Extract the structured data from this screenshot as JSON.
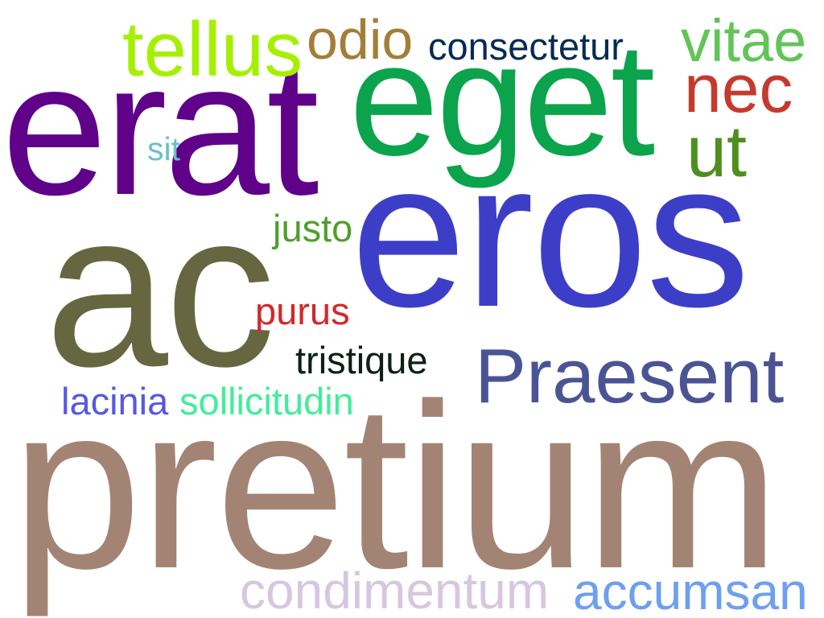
{
  "words": [
    {
      "text": "pretium",
      "color": "#a38474"
    },
    {
      "text": "eros",
      "color": "#3d3ec8"
    },
    {
      "text": "ac",
      "color": "#666741"
    },
    {
      "text": "erat",
      "color": "#5f0289"
    },
    {
      "text": "eget",
      "color": "#0ba44c"
    },
    {
      "text": "Praesent",
      "color": "#4a5495"
    },
    {
      "text": "tellus",
      "color": "#a5f002"
    },
    {
      "text": "nec",
      "color": "#c43b2d"
    },
    {
      "text": "ut",
      "color": "#4e8f1f"
    },
    {
      "text": "vitae",
      "color": "#62c458"
    },
    {
      "text": "odio",
      "color": "#a27f39"
    },
    {
      "text": "condimentum",
      "color": "#d7c7de"
    },
    {
      "text": "accumsan",
      "color": "#6e9ff0"
    },
    {
      "text": "consectetur",
      "color": "#052b52"
    },
    {
      "text": "justo",
      "color": "#4e9f2c"
    },
    {
      "text": "purus",
      "color": "#d3282a"
    },
    {
      "text": "tristique",
      "color": "#0b2016"
    },
    {
      "text": "sit",
      "color": "#6bbfcb"
    },
    {
      "text": "lacinia",
      "color": "#5659e0"
    },
    {
      "text": "sollicitudin",
      "color": "#40ee9a"
    }
  ]
}
